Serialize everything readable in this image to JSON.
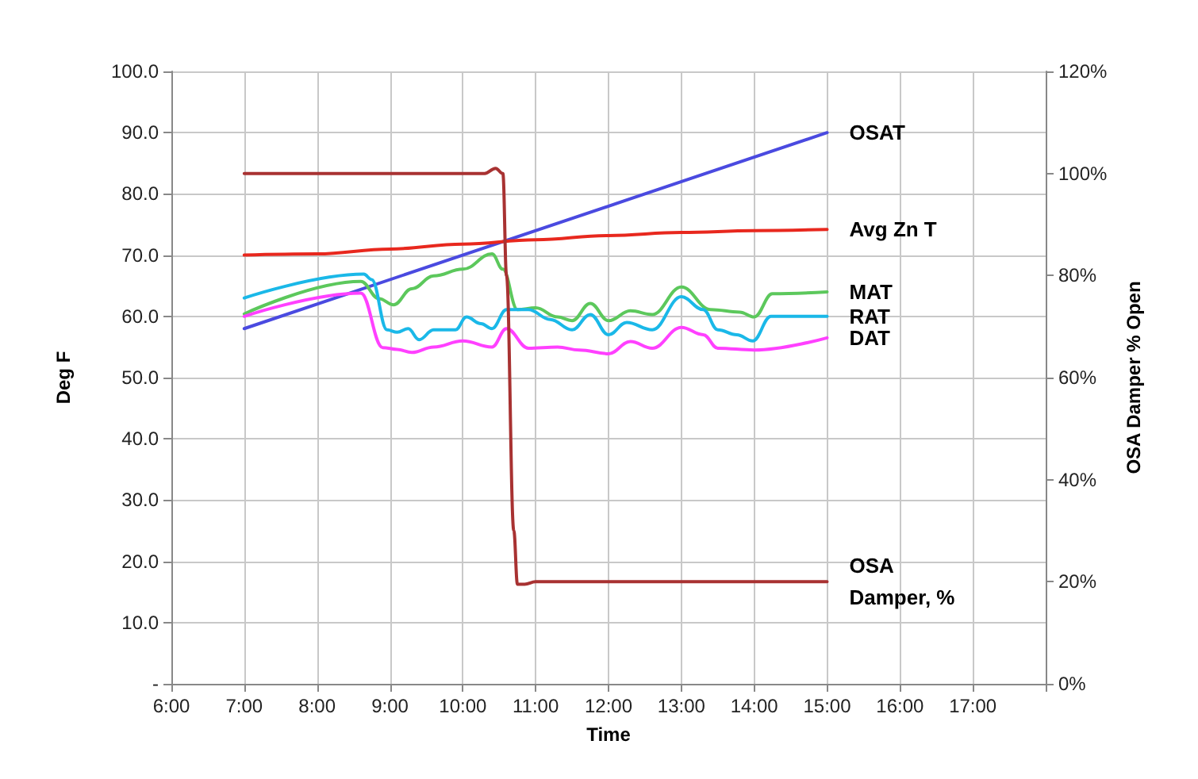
{
  "chart_data": {
    "type": "line",
    "xlabel": "Time",
    "ylabel": "Deg F",
    "y2label": "OSA Damper % Open",
    "xlim": [
      6,
      18
    ],
    "xticks": [
      {
        "value": 6,
        "label": "6:00"
      },
      {
        "value": 7,
        "label": "7:00"
      },
      {
        "value": 8,
        "label": "8:00"
      },
      {
        "value": 9,
        "label": "9:00"
      },
      {
        "value": 10,
        "label": "10:00"
      },
      {
        "value": 11,
        "label": "11:00"
      },
      {
        "value": 12,
        "label": "12:00"
      },
      {
        "value": 13,
        "label": "13:00"
      },
      {
        "value": 14,
        "label": "14:00"
      },
      {
        "value": 15,
        "label": "15:00"
      },
      {
        "value": 16,
        "label": "16:00"
      },
      {
        "value": 17,
        "label": "17:00"
      },
      {
        "value": 18,
        "label": null
      }
    ],
    "ylim": [
      0,
      100
    ],
    "yticks": [
      {
        "value": 0,
        "label": "-"
      },
      {
        "value": 10,
        "label": "10.0"
      },
      {
        "value": 20,
        "label": "20.0"
      },
      {
        "value": 30,
        "label": "30.0"
      },
      {
        "value": 40,
        "label": "40.0"
      },
      {
        "value": 50,
        "label": "50.0"
      },
      {
        "value": 60,
        "label": "60.0"
      },
      {
        "value": 70,
        "label": "70.0"
      },
      {
        "value": 80,
        "label": "80.0"
      },
      {
        "value": 90,
        "label": "90.0"
      },
      {
        "value": 100,
        "label": "100.0"
      }
    ],
    "y2lim": [
      0,
      120
    ],
    "y2ticks": [
      {
        "value": 0,
        "label": "0%"
      },
      {
        "value": 20,
        "label": "20%"
      },
      {
        "value": 40,
        "label": "40%"
      },
      {
        "value": 60,
        "label": "60%"
      },
      {
        "value": 80,
        "label": "80%"
      },
      {
        "value": 100,
        "label": "100%"
      },
      {
        "value": 120,
        "label": "120%"
      }
    ],
    "grid": true,
    "marker": "none",
    "line_style": "solid",
    "series": [
      {
        "name": "OSAT",
        "color": "#4a4ae0",
        "x": [
          7,
          15
        ],
        "values": [
          58,
          90
        ]
      },
      {
        "name": "Avg Zn T",
        "color": "#e8281e",
        "x": [
          7,
          8,
          9,
          10,
          11,
          12,
          13,
          14,
          15
        ],
        "values": [
          70,
          70.2,
          71,
          71.8,
          72.5,
          73.2,
          73.7,
          74,
          74.2
        ]
      },
      {
        "name": "MAT",
        "color": "#5cc85c",
        "x": [
          7,
          8.6,
          8.85,
          9.05,
          9.3,
          9.6,
          10,
          10.4,
          10.55,
          10.75,
          11,
          11.3,
          11.5,
          11.75,
          12,
          12.3,
          12.6,
          13,
          13.4,
          13.8,
          14,
          14.25,
          15
        ],
        "values": [
          60.4,
          65.7,
          62.9,
          61.9,
          64.5,
          66.6,
          67.7,
          70.2,
          67.7,
          61.1,
          61.4,
          59.9,
          59.3,
          62.1,
          59.3,
          60.9,
          60.3,
          64.8,
          61.1,
          60.7,
          59.9,
          63.7,
          64
        ]
      },
      {
        "name": "RAT",
        "color": "#1ab8e8",
        "x": [
          7,
          8.64,
          8.75,
          8.96,
          9.1,
          9.25,
          9.4,
          9.6,
          9.9,
          10.05,
          10.25,
          10.4,
          10.6,
          10.9,
          11.2,
          11.5,
          11.75,
          12,
          12.25,
          12.6,
          13,
          13.3,
          13.5,
          13.76,
          13.98,
          14.23,
          15
        ],
        "values": [
          63,
          66.9,
          66,
          57.8,
          57.4,
          58,
          56.2,
          57.8,
          57.8,
          59.9,
          58.8,
          58,
          61.1,
          61.1,
          59.5,
          57.8,
          60.3,
          57,
          59,
          57.8,
          63.2,
          61.1,
          57.8,
          57,
          56,
          60,
          60
        ]
      },
      {
        "name": "DAT",
        "color": "#ff40ff",
        "x": [
          7,
          8.6,
          8.9,
          9.1,
          9.3,
          9.6,
          10,
          10.4,
          10.6,
          10.9,
          11.3,
          11.6,
          12,
          12.3,
          12.6,
          13,
          13.3,
          13.5,
          14,
          15
        ],
        "values": [
          60,
          63.8,
          54.9,
          54.6,
          54.1,
          55,
          56,
          55,
          58,
          54.8,
          55,
          54.5,
          53.9,
          55.9,
          54.8,
          58.2,
          57,
          54.8,
          54.5,
          56.5
        ]
      },
      {
        "name": "OSA Damper, %",
        "color": "#a83232",
        "axis": "y2",
        "x": [
          7,
          10.3,
          10.45,
          10.55,
          10.6,
          10.7,
          10.75,
          10.85,
          11,
          15
        ],
        "values": [
          100,
          100,
          101,
          100,
          80,
          30,
          19.5,
          19.5,
          20,
          20
        ]
      }
    ]
  }
}
